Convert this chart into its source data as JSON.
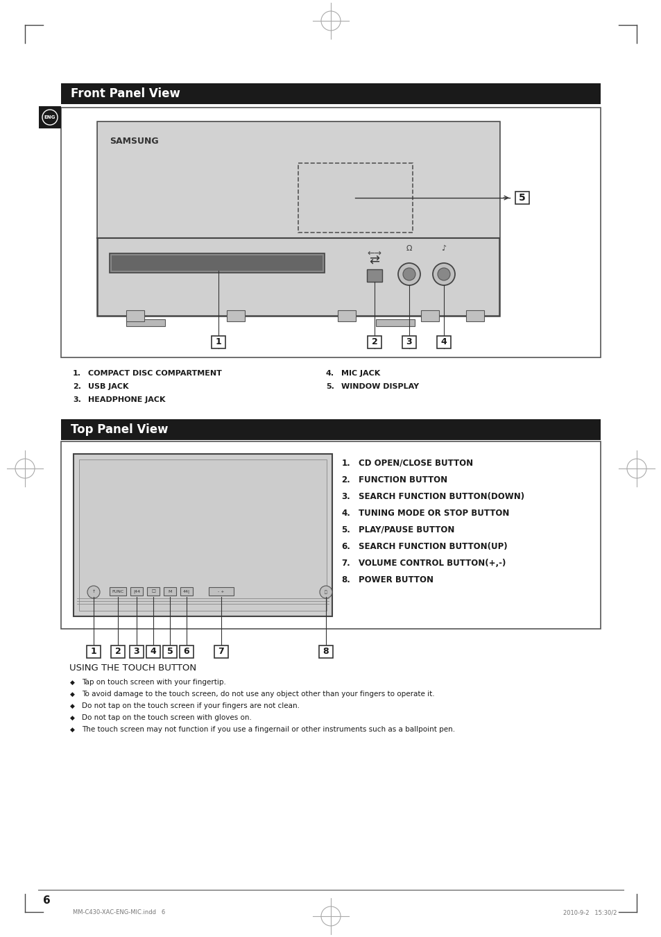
{
  "page_bg": "#ffffff",
  "header_bar_color": "#1a1a1a",
  "section_title_front": "Front Panel View",
  "section_title_top": "Top Panel View",
  "section_title_color": "#ffffff",
  "section_title_fontsize": 12,
  "eng_badge_color": "#1a1a1a",
  "front_labels_left": [
    [
      "1.",
      "COMPACT DISC COMPARTMENT"
    ],
    [
      "2.",
      "USB JACK"
    ],
    [
      "3.",
      "HEADPHONE JACK"
    ]
  ],
  "front_labels_right": [
    [
      "4.",
      "MIC JACK"
    ],
    [
      "5.",
      "WINDOW DISPLAY"
    ]
  ],
  "top_list": [
    [
      "1.",
      " CD OPEN/CLOSE BUTTON"
    ],
    [
      "2.",
      " FUNCTION BUTTON"
    ],
    [
      "3.",
      " SEARCH FUNCTION BUTTON(DOWN)"
    ],
    [
      "4.",
      " TUNING MODE OR STOP BUTTON"
    ],
    [
      "5.",
      " PLAY/PAUSE BUTTON"
    ],
    [
      "6.",
      " SEARCH FUNCTION BUTTON(UP)"
    ],
    [
      "7.",
      " VOLUME CONTROL BUTTON(+,-)"
    ],
    [
      "8.",
      " POWER BUTTON"
    ]
  ],
  "touch_title": "USING THE TOUCH BUTTON",
  "touch_bullets": [
    "Tap on touch screen with your fingertip.",
    "To avoid damage to the touch screen, do not use any object other than your fingers to operate it.",
    "Do not tap on the touch screen if your fingers are not clean.",
    "Do not tap on the touch screen with gloves on.",
    "The touch screen may not function if you use a fingernail or other instruments such as a ballpoint pen."
  ],
  "page_number": "6",
  "footer_left": "MM-C430-XAC-ENG-MIC.indd   6",
  "footer_right": "2010-9-2   15:30/2"
}
